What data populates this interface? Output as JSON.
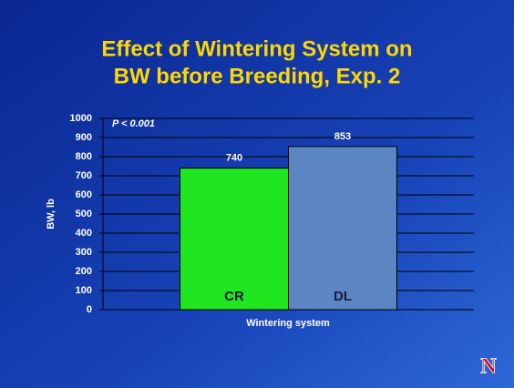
{
  "chart_data": {
    "type": "bar",
    "title": [
      "Effect of Wintering System on",
      "BW before Breeding, Exp. 2"
    ],
    "annotation": "P < 0.001",
    "categories": [
      "CR",
      "DL"
    ],
    "values": [
      740,
      853
    ],
    "colors": [
      "#1fe61f",
      "#5b86c2"
    ],
    "xlabel": "Wintering system",
    "ylabel": "BW, lb",
    "ylim": [
      0,
      1000
    ],
    "yticks": [
      0,
      100,
      200,
      300,
      400,
      500,
      600,
      700,
      800,
      900,
      1000
    ],
    "grid": true,
    "logo": "N"
  }
}
